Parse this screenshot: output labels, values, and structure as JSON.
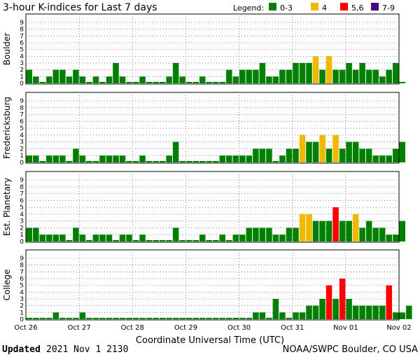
{
  "header": {
    "title": "3-hour K-indices for Last 7 days",
    "legend_label": "Legend:",
    "legend": [
      {
        "label": "0-3",
        "color": "#008000"
      },
      {
        "label": "4",
        "color": "#f0b800"
      },
      {
        "label": "5,6",
        "color": "#ff0000"
      },
      {
        "label": "7-9",
        "color": "#4b0082"
      }
    ]
  },
  "footer": {
    "updated_label": "Updated",
    "updated_value": "2021 Nov  1 2130",
    "source": "NOAA/SWPC Boulder, CO USA"
  },
  "chart_data": {
    "type": "bar",
    "xlabel": "Coordinate Universal Time (UTC)",
    "x_ticks": [
      "Oct 26",
      "Oct 27",
      "Oct 28",
      "Oct 29",
      "Oct 30",
      "Oct 31",
      "Nov 01",
      "Nov 02"
    ],
    "y_ticks": [
      "0",
      "1",
      "2",
      "3",
      "4",
      "5",
      "6",
      "7",
      "8",
      "9"
    ],
    "ylim": [
      0,
      9
    ],
    "interval_hours": 3,
    "color_scale": {
      "0-3": "#008000",
      "4": "#f0b800",
      "5-6": "#ff0000",
      "7-9": "#4b0082"
    },
    "panels": [
      {
        "name": "Boulder",
        "values": [
          2,
          1,
          0,
          1,
          2,
          2,
          1,
          2,
          1,
          0,
          1,
          0,
          1,
          3,
          1,
          0,
          0,
          1,
          0,
          0,
          0,
          1,
          3,
          1,
          0,
          0,
          1,
          0,
          0,
          0,
          2,
          1,
          2,
          2,
          2,
          3,
          1,
          1,
          2,
          2,
          3,
          3,
          3,
          4,
          2,
          4,
          2,
          2,
          3,
          2,
          3,
          2,
          2,
          1,
          2,
          3,
          0
        ]
      },
      {
        "name": "Fredericksburg",
        "values": [
          1,
          1,
          0,
          1,
          1,
          1,
          0,
          2,
          1,
          0,
          0,
          1,
          1,
          1,
          1,
          0,
          0,
          1,
          0,
          0,
          0,
          1,
          3,
          0,
          0,
          0,
          0,
          0,
          0,
          1,
          1,
          1,
          1,
          1,
          2,
          2,
          2,
          0,
          1,
          2,
          2,
          4,
          3,
          3,
          4,
          2,
          4,
          2,
          3,
          3,
          2,
          2,
          1,
          1,
          1,
          2,
          3
        ]
      },
      {
        "name": "Est. Planetary",
        "values": [
          2,
          2,
          1,
          1,
          1,
          1,
          0,
          2,
          1,
          0,
          1,
          1,
          1,
          0,
          1,
          1,
          0,
          1,
          0,
          0,
          0,
          0,
          2,
          0,
          0,
          0,
          1,
          0,
          0,
          1,
          0,
          1,
          1,
          2,
          2,
          2,
          2,
          1,
          1,
          2,
          2,
          4,
          4,
          3,
          3,
          3,
          5,
          3,
          3,
          4,
          2,
          3,
          2,
          2,
          1,
          1,
          3
        ]
      },
      {
        "name": "College",
        "values": [
          0,
          0,
          0,
          0,
          1,
          0,
          0,
          0,
          1,
          0,
          0,
          0,
          0,
          0,
          0,
          0,
          0,
          0,
          0,
          0,
          0,
          0,
          0,
          0,
          0,
          0,
          0,
          0,
          0,
          0,
          0,
          0,
          0,
          0,
          1,
          1,
          0,
          3,
          1,
          0,
          1,
          1,
          2,
          2,
          3,
          5,
          3,
          6,
          3,
          2,
          2,
          2,
          2,
          2,
          5,
          1,
          1,
          2
        ]
      }
    ]
  }
}
